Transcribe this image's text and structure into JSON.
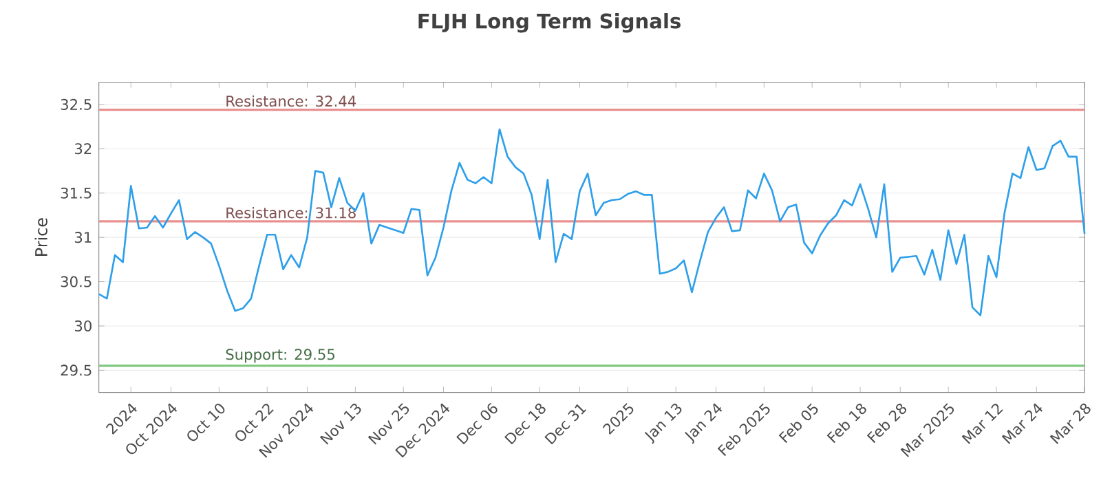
{
  "chart_data": {
    "type": "line",
    "title": "FLJH Long Term Signals",
    "ylabel": "Price",
    "categories": [
      null,
      null,
      null,
      null,
      "2024",
      null,
      null,
      null,
      null,
      "Oct 2024",
      null,
      null,
      null,
      null,
      null,
      "Oct 10",
      null,
      null,
      null,
      null,
      null,
      "Oct 22",
      null,
      null,
      null,
      null,
      "Nov 2024",
      null,
      null,
      null,
      null,
      null,
      "Nov 13",
      null,
      null,
      null,
      null,
      null,
      "Nov 25",
      null,
      null,
      null,
      null,
      "Dec 2024",
      null,
      null,
      null,
      null,
      null,
      "Dec 06",
      null,
      null,
      null,
      null,
      null,
      "Dec 18",
      null,
      null,
      null,
      null,
      "Dec 31",
      null,
      null,
      null,
      null,
      null,
      "2025",
      null,
      null,
      null,
      null,
      null,
      "Jan 13",
      null,
      null,
      null,
      null,
      "Jan 24",
      null,
      null,
      null,
      null,
      null,
      "Feb 2025",
      null,
      null,
      null,
      null,
      null,
      "Feb 05",
      null,
      null,
      null,
      null,
      null,
      "Feb 18",
      null,
      null,
      null,
      null,
      "Feb 28",
      null,
      null,
      null,
      null,
      null,
      "Mar 2025",
      null,
      null,
      null,
      null,
      null,
      "Mar 12",
      null,
      null,
      null,
      null,
      "Mar 24",
      null,
      null,
      null,
      null,
      null,
      "Mar 28"
    ],
    "series": [
      {
        "color": "#2e9fea",
        "values": [
          30.36,
          30.31,
          30.8,
          30.72,
          31.58,
          31.1,
          31.11,
          31.24,
          31.11,
          31.27,
          31.42,
          30.98,
          31.06,
          31.0,
          30.93,
          30.68,
          30.4,
          30.17,
          30.2,
          30.31,
          30.68,
          31.03,
          31.03,
          30.64,
          30.8,
          30.66,
          31.0,
          31.75,
          31.73,
          31.34,
          31.67,
          31.39,
          31.3,
          31.5,
          30.93,
          31.14,
          31.11,
          31.08,
          31.05,
          31.32,
          31.31,
          30.57,
          30.77,
          31.11,
          31.53,
          31.84,
          31.65,
          31.61,
          31.68,
          31.61,
          32.22,
          31.91,
          31.79,
          31.72,
          31.48,
          30.98,
          31.65,
          30.72,
          31.04,
          30.98,
          31.52,
          31.72,
          31.25,
          31.39,
          31.42,
          31.43,
          31.49,
          31.52,
          31.48,
          31.48,
          30.59,
          30.61,
          30.65,
          30.74,
          30.38,
          30.73,
          31.06,
          31.22,
          31.34,
          31.07,
          31.08,
          31.53,
          31.44,
          31.72,
          31.53,
          31.18,
          31.34,
          31.37,
          30.94,
          30.82,
          31.02,
          31.16,
          31.25,
          31.42,
          31.36,
          31.6,
          31.32,
          31.0,
          31.6,
          30.61,
          30.77,
          30.78,
          30.79,
          30.58,
          30.86,
          30.52,
          31.08,
          30.7,
          31.03,
          30.21,
          30.12,
          30.79,
          30.55,
          31.27,
          31.72,
          31.67,
          32.02,
          31.76,
          31.78,
          32.03,
          32.09,
          31.91,
          31.91,
          31.04
        ]
      }
    ],
    "ylim": [
      29.25,
      32.75
    ],
    "yticks": [
      29.5,
      30,
      30.5,
      31,
      31.5,
      32,
      32.5
    ],
    "grid": "y",
    "marker": "none",
    "line_style": "solid",
    "ref_lines": [
      {
        "axis": "y",
        "value": 32.44,
        "label": "Resistance: 32.44",
        "color": "#e89090"
      },
      {
        "axis": "y",
        "value": 31.18,
        "label": "Resistance: 31.18",
        "color": "#e89090"
      },
      {
        "axis": "y",
        "value": 29.55,
        "label": "Support: 29.55",
        "color": "#80c880"
      }
    ]
  }
}
